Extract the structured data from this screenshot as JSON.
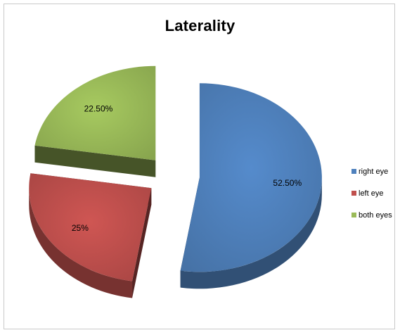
{
  "chart_data": {
    "type": "pie",
    "title": "Laterality",
    "categories": [
      "right eye",
      "left eye",
      "both eyes"
    ],
    "values": [
      52.5,
      25,
      22.5
    ],
    "data_labels": [
      "52.50%",
      "25%",
      "22.50%"
    ],
    "colors": [
      "#4f81bd",
      "#c0504d",
      "#9bbb59"
    ],
    "exploded": true,
    "three_d": true,
    "legend": "right"
  }
}
